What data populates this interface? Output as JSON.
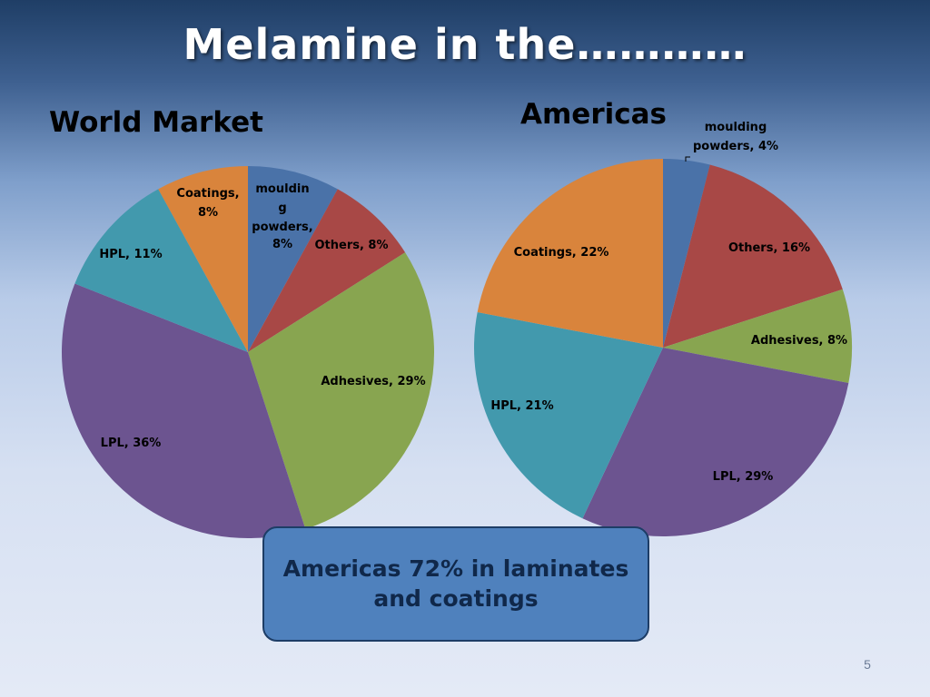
{
  "slide": {
    "title": "Melamine in the…………",
    "callout": "Americas 72% in laminates and coatings",
    "page_number": "5"
  },
  "chart_data": [
    {
      "type": "pie",
      "title": "World Market",
      "categories": [
        "moulding powders",
        "Others",
        "Adhesives",
        "LPL",
        "HPL",
        "Coatings"
      ],
      "values": [
        8,
        8,
        29,
        36,
        11,
        8
      ],
      "labels": [
        "moulding powders, 8%",
        "Others, 8%",
        "Adhesives, 29%",
        "LPL, 36%",
        "HPL, 11%",
        "Coatings, 8%"
      ],
      "colors": [
        "#4a72a8",
        "#a84846",
        "#88a550",
        "#6c5490",
        "#4299ad",
        "#d9843c"
      ],
      "legend": "none"
    },
    {
      "type": "pie",
      "title": "Americas",
      "categories": [
        "moulding powders",
        "Others",
        "Adhesives",
        "LPL",
        "HPL",
        "Coatings"
      ],
      "values": [
        4,
        16,
        8,
        29,
        21,
        22
      ],
      "labels": [
        "moulding powders, 4%",
        "Others, 16%",
        "Adhesives, 8%",
        "LPL, 29%",
        "HPL, 21%",
        "Coatings, 22%"
      ],
      "colors": [
        "#4a72a8",
        "#a84846",
        "#88a550",
        "#6c5490",
        "#4299ad",
        "#d9843c"
      ],
      "legend": "none"
    }
  ]
}
